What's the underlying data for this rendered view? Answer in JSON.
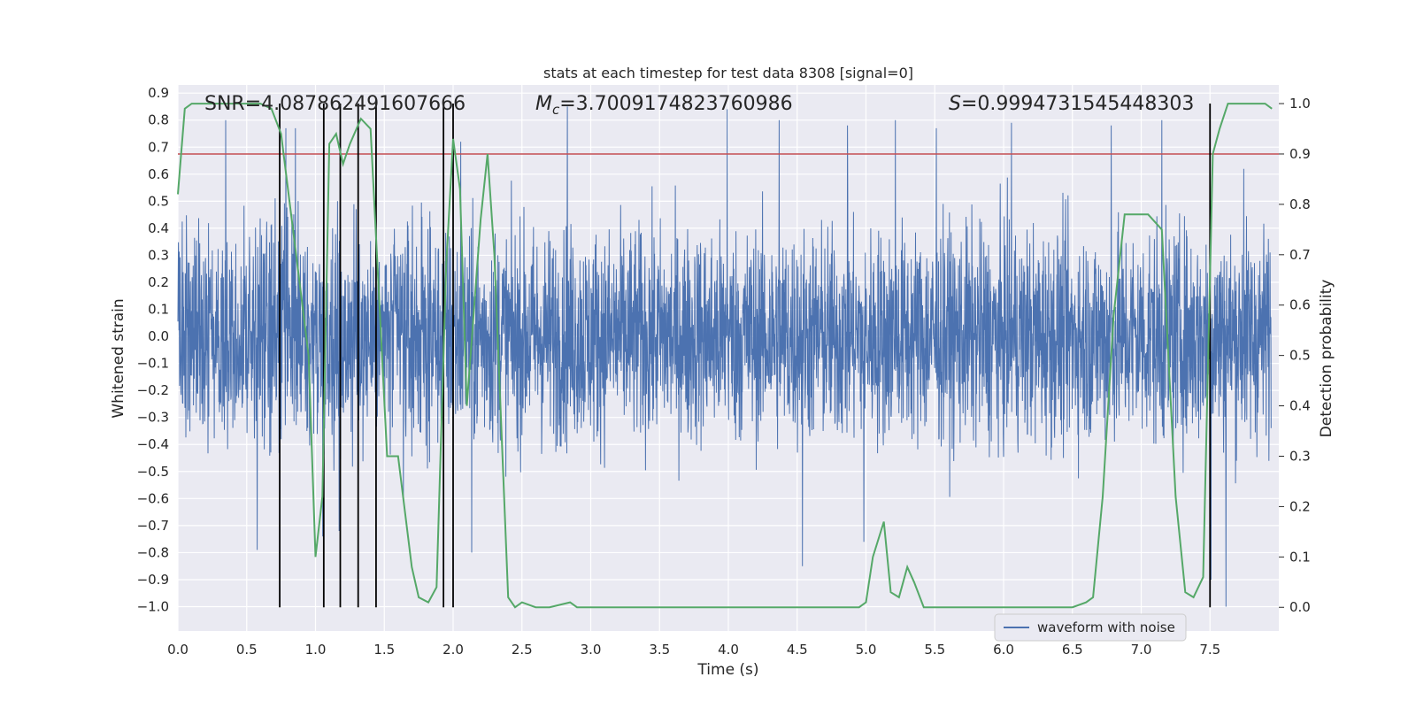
{
  "chart_data": {
    "type": "line",
    "title": "stats at each timestep for test data 8308 [signal=0]",
    "xlabel": "Time (s)",
    "ylabel_left": "Whitened strain",
    "ylabel_right": "Detection probability",
    "xlim": [
      0.0,
      8.0
    ],
    "ylim_left": [
      -1.09,
      0.93
    ],
    "ylim_right": [
      -0.047,
      1.037
    ],
    "x_ticks": [
      "0.0",
      "0.5",
      "1.0",
      "1.5",
      "2.0",
      "2.5",
      "3.0",
      "3.5",
      "4.0",
      "4.5",
      "5.0",
      "5.5",
      "6.0",
      "6.5",
      "7.0",
      "7.5"
    ],
    "y_left_ticks": [
      "0.9",
      "0.8",
      "0.7",
      "0.6",
      "0.5",
      "0.4",
      "0.3",
      "0.2",
      "0.1",
      "0.0",
      "-0.1",
      "-0.2",
      "-0.3",
      "-0.4",
      "-0.5",
      "-0.6",
      "-0.7",
      "-0.8",
      "-0.9",
      "-1.0"
    ],
    "y_right_ticks": [
      "1.0",
      "0.9",
      "0.8",
      "0.7",
      "0.6",
      "0.5",
      "0.4",
      "0.3",
      "0.2",
      "0.1",
      "0.0"
    ],
    "grid": true,
    "legend": {
      "position": "lower-right",
      "entries": [
        "waveform with noise"
      ]
    },
    "annotations": {
      "snr": "SNR=4.087862491607666",
      "mc_prefix": "M",
      "mc_sub": "c",
      "mc_value": "=3.7009174823760986",
      "s_prefix": "S",
      "s_value": "=0.9994731545448303"
    },
    "threshold": {
      "value": 0.9,
      "axis": "right",
      "color": "#c44e52"
    },
    "vertical_markers": [
      0.74,
      1.06,
      1.18,
      1.31,
      1.44,
      1.93,
      2.0,
      7.5
    ],
    "series": [
      {
        "name": "waveform with noise",
        "axis": "left",
        "color": "#4c72b0",
        "description": "whitened strain noise, roughly within ±0.5 with spikes to ±0.85",
        "spikes": [
          [
            0.35,
            0.8
          ],
          [
            0.58,
            -0.79
          ],
          [
            0.79,
            0.77
          ],
          [
            0.86,
            0.77
          ],
          [
            1.06,
            -0.74
          ],
          [
            1.18,
            -0.72
          ],
          [
            1.65,
            -0.6
          ],
          [
            2.07,
            0.72
          ],
          [
            2.15,
            -0.8
          ],
          [
            2.85,
            0.85
          ],
          [
            4.02,
            0.84
          ],
          [
            4.4,
            0.8
          ],
          [
            4.57,
            -0.85
          ],
          [
            4.9,
            0.78
          ],
          [
            5.02,
            -0.76
          ],
          [
            5.25,
            0.8
          ],
          [
            5.55,
            0.77
          ],
          [
            6.1,
            0.79
          ],
          [
            6.83,
            0.78
          ],
          [
            7.2,
            0.8
          ],
          [
            7.56,
            -0.9
          ],
          [
            7.67,
            -1.0
          ],
          [
            7.8,
            0.62
          ]
        ]
      },
      {
        "name": "detection probability",
        "axis": "right",
        "color": "#55a868",
        "x": [
          0.0,
          0.05,
          0.1,
          0.2,
          0.4,
          0.6,
          0.68,
          0.75,
          0.85,
          0.95,
          1.0,
          1.05,
          1.1,
          1.15,
          1.2,
          1.25,
          1.33,
          1.4,
          1.45,
          1.52,
          1.6,
          1.7,
          1.75,
          1.82,
          1.88,
          1.95,
          2.0,
          2.05,
          2.1,
          2.2,
          2.25,
          2.3,
          2.4,
          2.45,
          2.5,
          2.6,
          2.7,
          2.85,
          2.9,
          3.0,
          3.5,
          4.0,
          4.5,
          4.9,
          4.95,
          5.0,
          5.05,
          5.13,
          5.18,
          5.24,
          5.3,
          5.35,
          5.42,
          5.5,
          6.0,
          6.5,
          6.6,
          6.65,
          6.72,
          6.8,
          6.88,
          6.95,
          7.05,
          7.15,
          7.25,
          7.32,
          7.38,
          7.45,
          7.52,
          7.57,
          7.63,
          7.7,
          7.8,
          7.9,
          7.95
        ],
        "values": [
          0.82,
          0.99,
          1.0,
          1.0,
          1.0,
          1.0,
          0.99,
          0.94,
          0.72,
          0.5,
          0.1,
          0.22,
          0.92,
          0.94,
          0.88,
          0.92,
          0.97,
          0.95,
          0.68,
          0.3,
          0.3,
          0.08,
          0.02,
          0.01,
          0.04,
          0.68,
          0.93,
          0.83,
          0.4,
          0.77,
          0.9,
          0.7,
          0.02,
          0.0,
          0.01,
          0.0,
          0.0,
          0.01,
          0.0,
          0.0,
          0.0,
          0.0,
          0.0,
          0.0,
          0.0,
          0.01,
          0.1,
          0.17,
          0.03,
          0.02,
          0.08,
          0.05,
          0.0,
          0.0,
          0.0,
          0.0,
          0.01,
          0.02,
          0.22,
          0.58,
          0.78,
          0.78,
          0.78,
          0.75,
          0.22,
          0.03,
          0.02,
          0.06,
          0.9,
          0.95,
          1.0,
          1.0,
          1.0,
          1.0,
          0.99
        ]
      }
    ]
  }
}
